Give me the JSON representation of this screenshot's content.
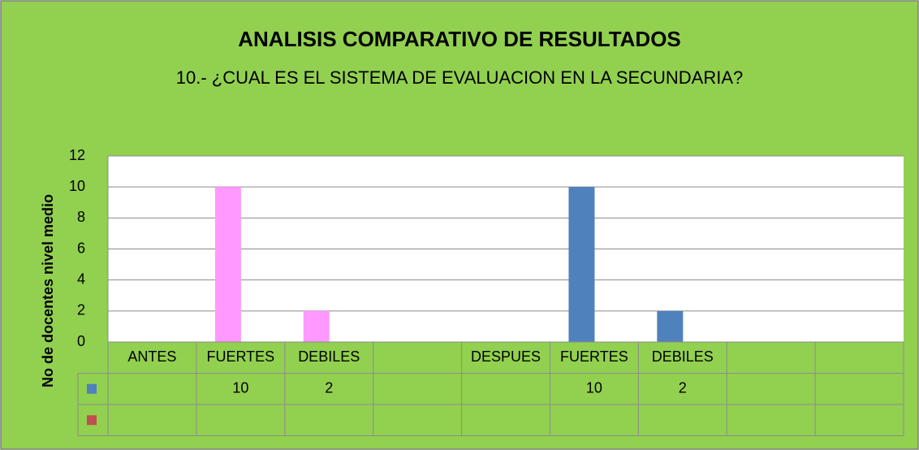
{
  "chart_data": {
    "type": "bar",
    "title": "ANALISIS COMPARATIVO DE RESULTADOS",
    "subtitle": "10.- ¿CUAL ES EL SISTEMA DE EVALUACION  EN LA SECUNDARIA?",
    "y_label": "No de docentes nivel medio",
    "categories": [
      "ANTES",
      "FUERTES",
      "DEBILES",
      null,
      "DESPUES",
      "FUERTES",
      "DEBILES",
      null,
      null
    ],
    "series": [
      {
        "color": "#4f81bd",
        "point_colors": [
          "#4f81bd",
          "#ff99ff",
          "#ff99ff",
          "#4f81bd",
          "#4f81bd",
          "#4f81bd",
          "#4f81bd",
          "#4f81bd",
          "#4f81bd"
        ],
        "values": [
          null,
          10,
          2,
          null,
          null,
          10,
          2,
          null,
          null
        ]
      },
      {
        "color": "#c0504d",
        "values": [
          null,
          null,
          null,
          null,
          null,
          null,
          null,
          null,
          null
        ]
      }
    ],
    "ylim": [
      0,
      12
    ],
    "yticks": [
      0,
      2,
      4,
      6,
      8,
      10,
      12
    ],
    "grid": true,
    "data_table": true
  }
}
